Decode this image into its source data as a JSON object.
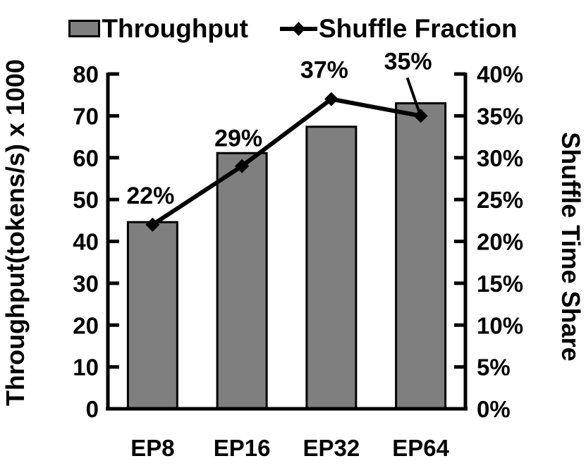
{
  "colors": {
    "background": "#ffffff",
    "bar_fill": "#7f7f7f",
    "bar_border": "#000000",
    "line": "#000000",
    "text": "#000000"
  },
  "chart_data": {
    "type": "bar",
    "subtype": "bar-line-combo",
    "categories": [
      "EP8",
      "EP16",
      "EP32",
      "EP64"
    ],
    "series": [
      {
        "name": "Throughput",
        "type": "bar",
        "axis": "left",
        "values": [
          44.6,
          61.1,
          67.4,
          73.0
        ]
      },
      {
        "name": "Shuffle Fraction",
        "type": "line",
        "axis": "right",
        "values": [
          22,
          29,
          37,
          35
        ],
        "point_labels": [
          "22%",
          "29%",
          "37%",
          "35%"
        ]
      }
    ],
    "left_axis": {
      "title": "Throughput(tokens/s) x 1000",
      "min": 0,
      "max": 80,
      "step": 10,
      "tick_labels": [
        "0",
        "10",
        "20",
        "30",
        "40",
        "50",
        "60",
        "70",
        "80"
      ]
    },
    "right_axis": {
      "title": "Shuffle Time Share",
      "min": 0,
      "max": 40,
      "step": 5,
      "tick_labels": [
        "0%",
        "5%",
        "10%",
        "15%",
        "20%",
        "25%",
        "30%",
        "35%",
        "40%"
      ]
    },
    "legend": {
      "position": "top",
      "items": [
        "Throughput",
        "Shuffle Fraction"
      ]
    },
    "grid": false
  }
}
